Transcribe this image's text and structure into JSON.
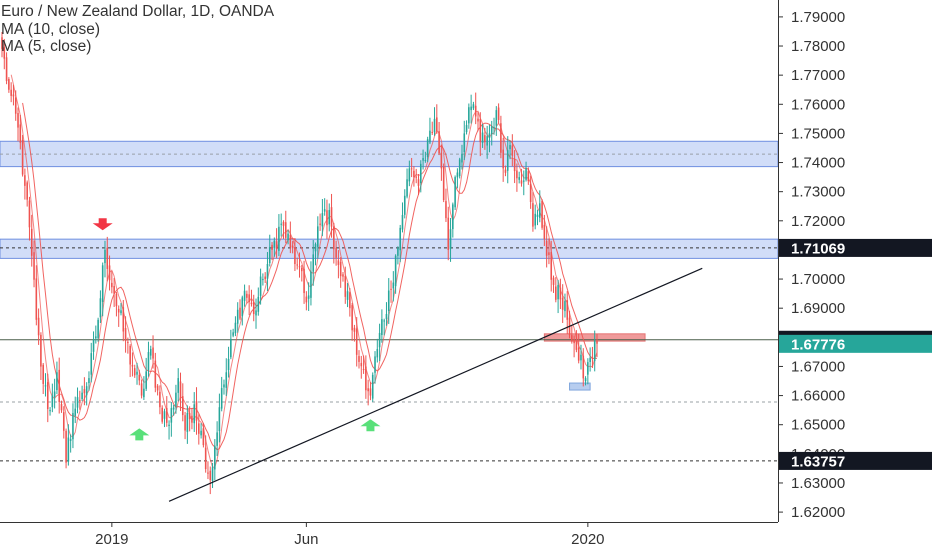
{
  "legend": {
    "title": "Euro / New Zealand Dollar, 1D, OANDA",
    "ma10": "MA (10, close)",
    "ma5": "MA (5, close)"
  },
  "colors": {
    "up": "#26a69a",
    "down": "#ef5350",
    "ma": "#ef5350",
    "zone_fill": "#c9d7f7",
    "zone_border": "#6f8fe0",
    "box_red": "#ef9a9a",
    "box_blue": "#b7cdef",
    "arrow_up": "#59e07a",
    "arrow_down": "#f23645",
    "axis_text": "#333333",
    "label_dark": "#131722",
    "label_teal": "#26a69a"
  },
  "chart_data": {
    "type": "candlestick",
    "symbol": "Euro / New Zealand Dollar",
    "interval": "1D",
    "source": "OANDA",
    "y_ticks": [
      1.62,
      1.63,
      1.64,
      1.65,
      1.66,
      1.67,
      1.68,
      1.69,
      1.7,
      1.71,
      1.72,
      1.73,
      1.74,
      1.75,
      1.76,
      1.77,
      1.78,
      1.79
    ],
    "y_tick_labels": [
      "1.62000",
      "1.63000",
      "1.64000",
      "1.65000",
      "1.66000",
      "1.67000",
      "1.68000",
      "1.69000",
      "1.70000",
      "1.71000",
      "1.72000",
      "1.73000",
      "1.74000",
      "1.75000",
      "1.76000",
      "1.77000",
      "1.78000",
      "1.79000"
    ],
    "ylim": [
      1.6166,
      1.7958
    ],
    "x_labels": [
      {
        "label": "2019",
        "index": 48
      },
      {
        "label": "Jun",
        "index": 133
      },
      {
        "label": "2020",
        "index": 256
      }
    ],
    "price_labels": [
      {
        "text": "1.71069",
        "value": 1.71069,
        "style": "dark"
      },
      {
        "text": "1.67916",
        "value": 1.67916,
        "style": "dark"
      },
      {
        "text": "1.67776",
        "value": 1.67776,
        "style": "teal"
      },
      {
        "text": "1.63757",
        "value": 1.63757,
        "style": "dark"
      }
    ],
    "horizontal_lines": [
      {
        "value": 1.67916,
        "style": "solid",
        "color": "#4a5e4a"
      },
      {
        "value": 1.6578,
        "style": "dashed",
        "color": "#9aa0a6"
      },
      {
        "value": 1.63757,
        "style": "dashed",
        "color": "#333333"
      },
      {
        "value": 1.71069,
        "style": "dashed",
        "color": "#333333",
        "from_index": 0
      },
      {
        "value": 1.7429,
        "style": "dashed",
        "color": "#9aa0a6",
        "from_index": 0
      }
    ],
    "zones": [
      {
        "from_value": 1.7386,
        "to_value": 1.7473,
        "color": "blue"
      },
      {
        "from_value": 1.7071,
        "to_value": 1.7137,
        "color": "blue"
      },
      {
        "from_value": 1.6787,
        "to_value": 1.6812,
        "color": "red",
        "from_index": 237,
        "to_index": 281
      },
      {
        "from_value": 1.6619,
        "to_value": 1.6643,
        "color": "lightblue",
        "from_index": 248,
        "to_index": 257
      }
    ],
    "trendlines": [
      {
        "x1_index": 73,
        "y1": 1.6237,
        "x2_index": 306,
        "y2": 1.7037
      }
    ],
    "markers": [
      {
        "type": "arrow_up",
        "index": 60,
        "value": 1.6467
      },
      {
        "type": "arrow_up",
        "index": 161,
        "value": 1.6498
      },
      {
        "type": "arrow_down",
        "index": 44,
        "value": 1.7188
      }
    ],
    "keypoints": [
      [
        0,
        1.779
      ],
      [
        3,
        1.765
      ],
      [
        7,
        1.752
      ],
      [
        10,
        1.732
      ],
      [
        13,
        1.708
      ],
      [
        15,
        1.686
      ],
      [
        18,
        1.664
      ],
      [
        21,
        1.655
      ],
      [
        24,
        1.668
      ],
      [
        28,
        1.637
      ],
      [
        31,
        1.654
      ],
      [
        35,
        1.661
      ],
      [
        38,
        1.666
      ],
      [
        42,
        1.686
      ],
      [
        45,
        1.71
      ],
      [
        49,
        1.695
      ],
      [
        53,
        1.682
      ],
      [
        57,
        1.67
      ],
      [
        61,
        1.66
      ],
      [
        65,
        1.676
      ],
      [
        69,
        1.656
      ],
      [
        73,
        1.65
      ],
      [
        77,
        1.666
      ],
      [
        80,
        1.648
      ],
      [
        84,
        1.657
      ],
      [
        88,
        1.643
      ],
      [
        91,
        1.631
      ],
      [
        95,
        1.656
      ],
      [
        98,
        1.668
      ],
      [
        102,
        1.685
      ],
      [
        106,
        1.696
      ],
      [
        110,
        1.688
      ],
      [
        114,
        1.7
      ],
      [
        118,
        1.71
      ],
      [
        122,
        1.719
      ],
      [
        126,
        1.711
      ],
      [
        129,
        1.705
      ],
      [
        133,
        1.692
      ],
      [
        137,
        1.712
      ],
      [
        141,
        1.724
      ],
      [
        144,
        1.718
      ],
      [
        148,
        1.701
      ],
      [
        152,
        1.69
      ],
      [
        155,
        1.674
      ],
      [
        158,
        1.669
      ],
      [
        161,
        1.66
      ],
      [
        164,
        1.676
      ],
      [
        168,
        1.688
      ],
      [
        172,
        1.708
      ],
      [
        175,
        1.722
      ],
      [
        178,
        1.738
      ],
      [
        182,
        1.732
      ],
      [
        186,
        1.748
      ],
      [
        189,
        1.755
      ],
      [
        192,
        1.738
      ],
      [
        195,
        1.71
      ],
      [
        198,
        1.735
      ],
      [
        202,
        1.75
      ],
      [
        206,
        1.76
      ],
      [
        209,
        1.747
      ],
      [
        213,
        1.75
      ],
      [
        216,
        1.758
      ],
      [
        219,
        1.738
      ],
      [
        222,
        1.746
      ],
      [
        226,
        1.735
      ],
      [
        229,
        1.738
      ],
      [
        232,
        1.718
      ],
      [
        235,
        1.726
      ],
      [
        238,
        1.708
      ],
      [
        241,
        1.698
      ],
      [
        244,
        1.693
      ],
      [
        247,
        1.686
      ],
      [
        250,
        1.678
      ],
      [
        252,
        1.672
      ],
      [
        255,
        1.666
      ],
      [
        257,
        1.673
      ],
      [
        260,
        1.6778
      ]
    ],
    "bars": 261
  }
}
